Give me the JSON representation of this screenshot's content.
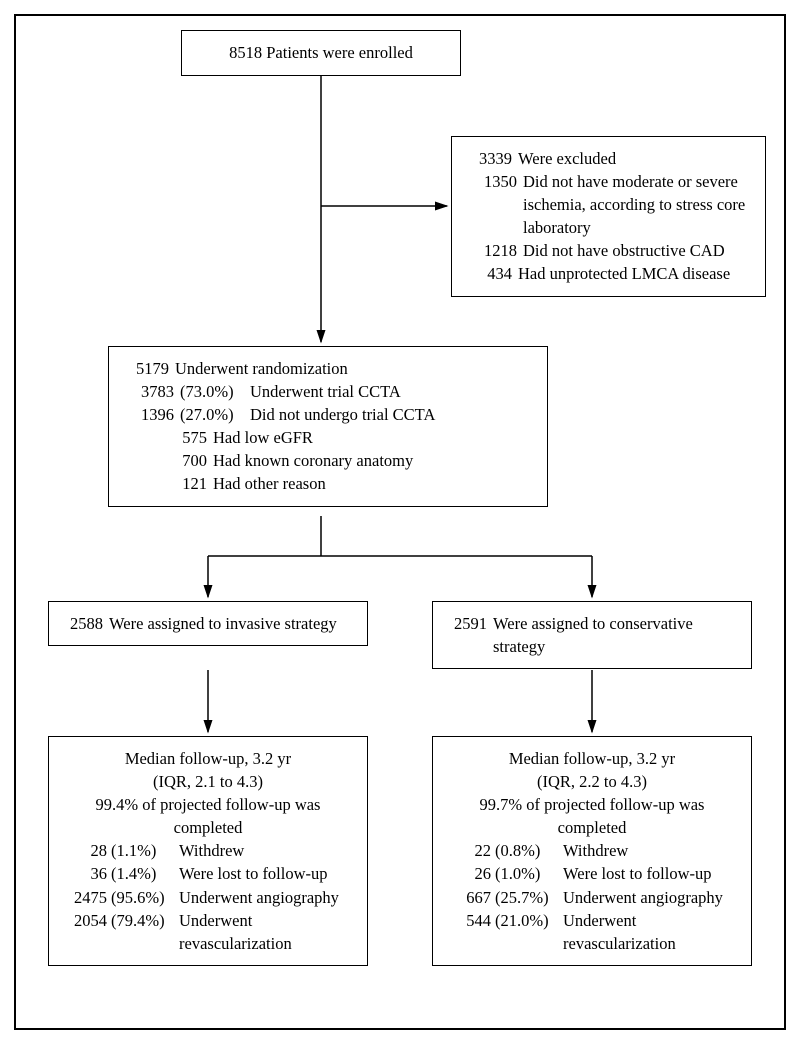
{
  "type": "flowchart",
  "nodes": {
    "enrolled": {
      "text": "8518 Patients were enrolled"
    },
    "excluded": {
      "header": "3339 Were excluded",
      "items": [
        {
          "n": "1350",
          "t": "Did not have moderate or severe ischemia, according to stress core laboratory"
        },
        {
          "n": "1218",
          "t": "Did not have obstructive CAD"
        },
        {
          "n": "434",
          "t": "Had unprotected LMCA disease"
        }
      ]
    },
    "randomized": {
      "header": "5179 Underwent randomization",
      "items": [
        {
          "n": "3783",
          "pct": "(73.0%)",
          "t": "Underwent trial CCTA"
        },
        {
          "n": "1396",
          "pct": "(27.0%)",
          "t": "Did not undergo trial CCTA"
        }
      ],
      "subitems": [
        {
          "n": "575",
          "t": "Had low eGFR"
        },
        {
          "n": "700",
          "t": "Had known coronary anatomy"
        },
        {
          "n": "121",
          "t": "Had other reason"
        }
      ]
    },
    "invasive_assign": {
      "text_n": "2588",
      "text_rest": "Were assigned to invasive strategy"
    },
    "conservative_assign": {
      "text_n": "2591",
      "text_rest": "Were assigned to conservative strategy"
    },
    "invasive_followup": {
      "median": "Median follow-up, 3.2 yr",
      "iqr": "(IQR, 2.1 to 4.3)",
      "completed": "99.4% of projected follow-up was completed",
      "rows": [
        {
          "n": "28",
          "pct": "(1.1%)",
          "t": "Withdrew"
        },
        {
          "n": "36",
          "pct": "(1.4%)",
          "t": "Were lost to follow-up"
        },
        {
          "n": "2475",
          "pct": "(95.6%)",
          "t": "Underwent angiography"
        },
        {
          "n": "2054",
          "pct": "(79.4%)",
          "t": "Underwent revascularization"
        }
      ]
    },
    "conservative_followup": {
      "median": "Median follow-up, 3.2 yr",
      "iqr": "(IQR, 2.2 to 4.3)",
      "completed": "99.7% of projected follow-up was completed",
      "rows": [
        {
          "n": "22",
          "pct": "(0.8%)",
          "t": "Withdrew"
        },
        {
          "n": "26",
          "pct": "(1.0%)",
          "t": "Were lost to follow-up"
        },
        {
          "n": "667",
          "pct": "(25.7%)",
          "t": "Underwent angiography"
        },
        {
          "n": "544",
          "pct": "(21.0%)",
          "t": "Underwent revascularization"
        }
      ]
    }
  },
  "style": {
    "border_color": "#000000",
    "background": "#ffffff",
    "font_family": "Georgia, serif",
    "font_size_pt": 12,
    "arrow_stroke": "#000000",
    "arrow_width": 1.5
  }
}
